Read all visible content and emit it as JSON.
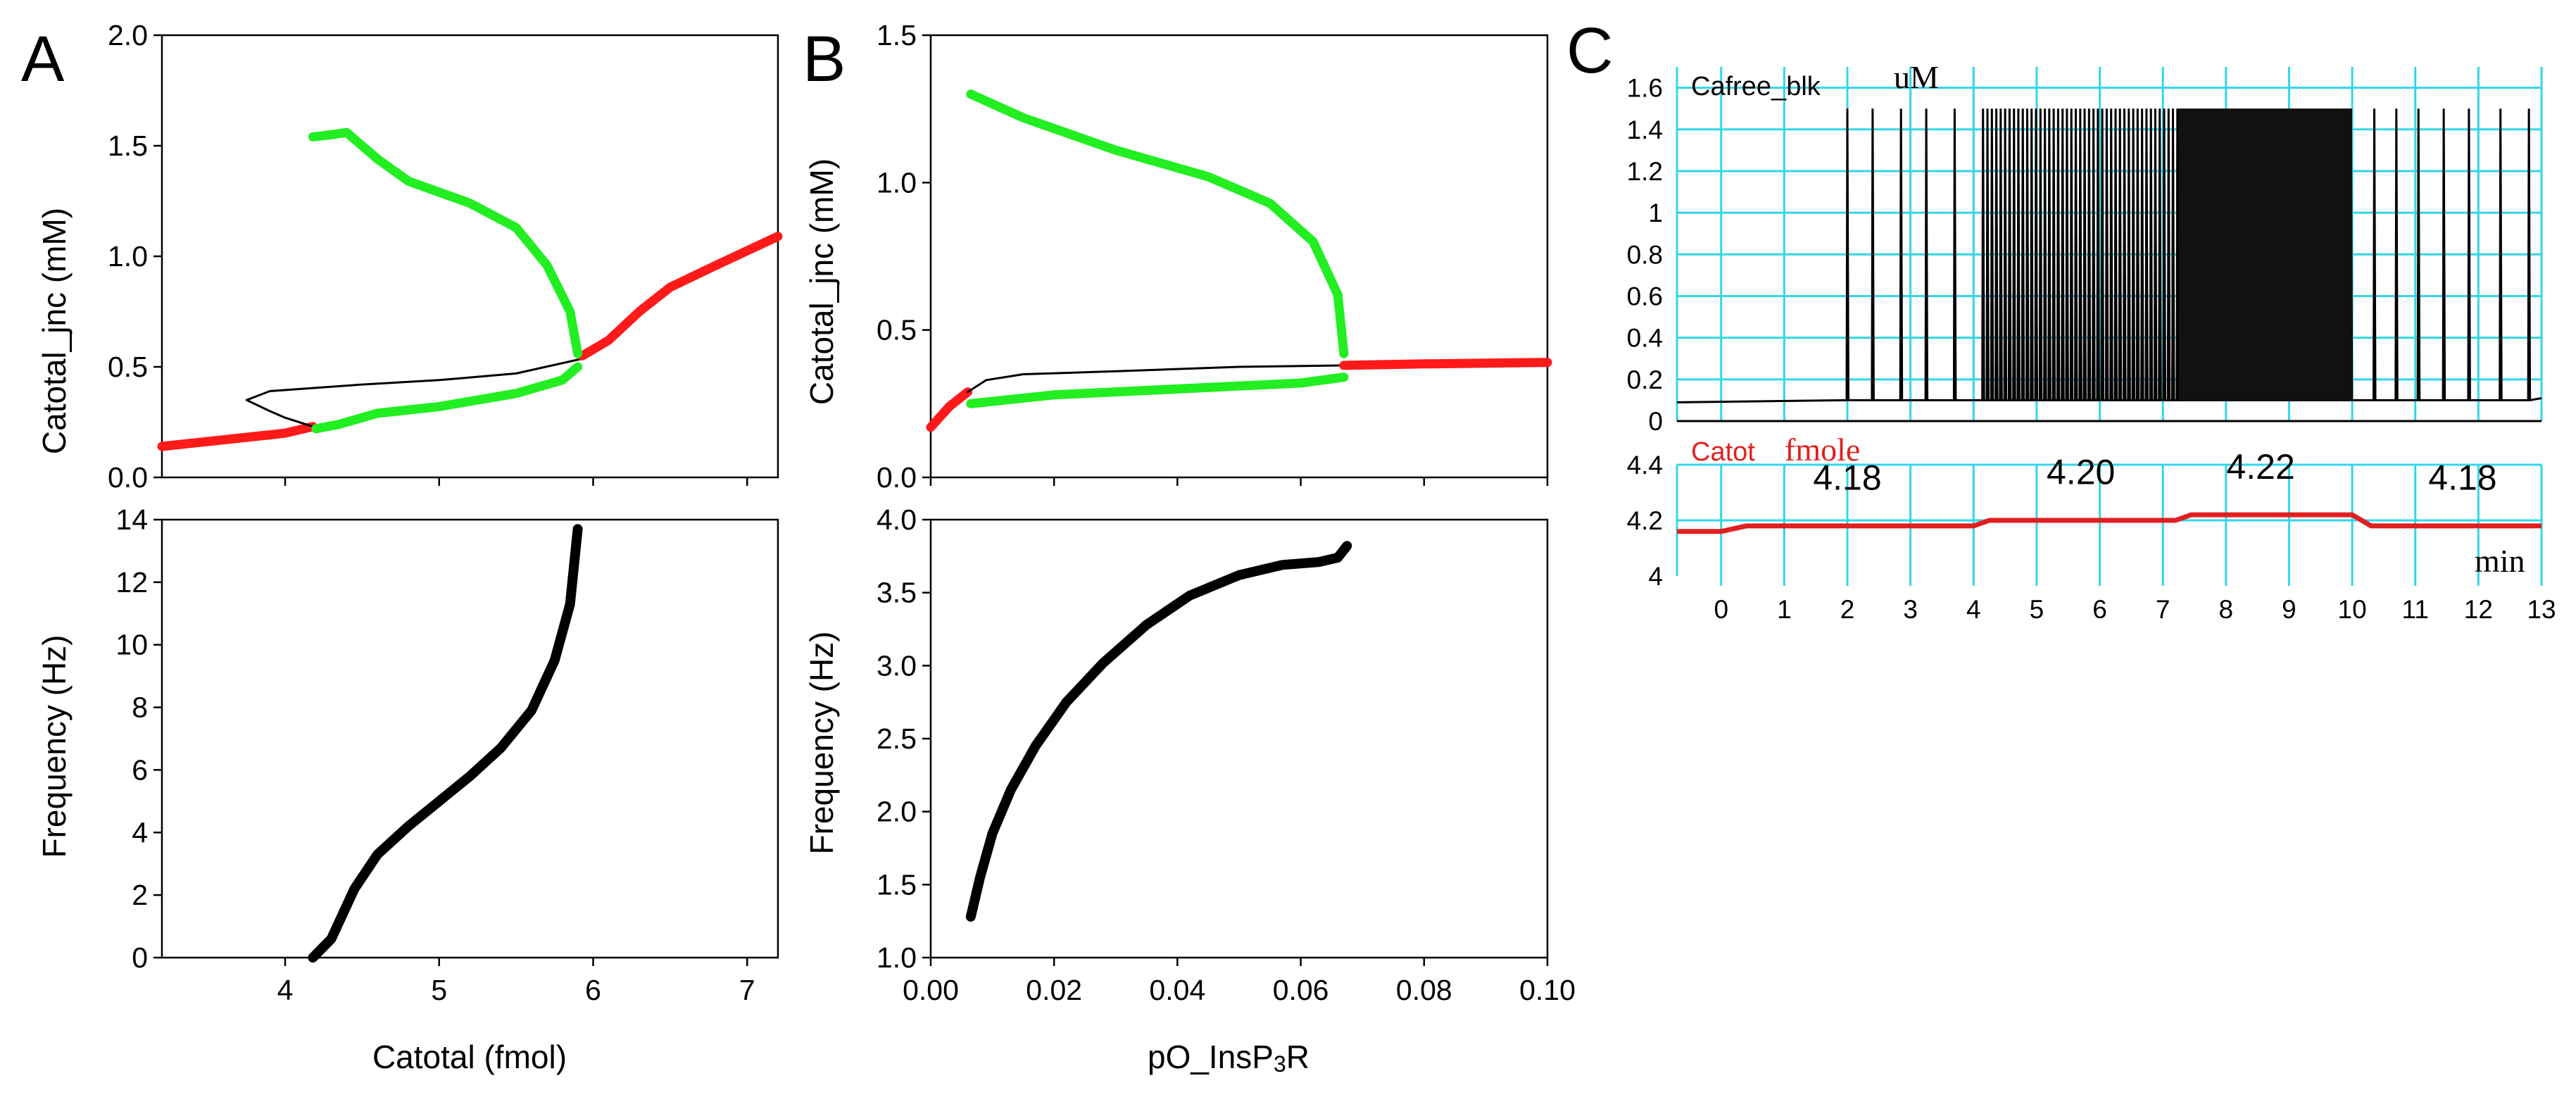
{
  "panel_labels": {
    "A": "A",
    "B": "B",
    "C": "C"
  },
  "colors": {
    "stable": "#ff1a1a",
    "limit_cycle": "#22ee22",
    "unstable": "#000000",
    "frequency": "#000000",
    "grid_c": "#33d6e8",
    "catot_line": "#e02020"
  },
  "chart_data": [
    {
      "id": "A-top",
      "type": "line",
      "xlabel": "",
      "ylabel": "Catotal_jnc (mM)",
      "xlim": [
        3.2,
        7.2
      ],
      "ylim": [
        0.0,
        2.0
      ],
      "x_ticks": [],
      "y_ticks": [
        0.0,
        0.5,
        1.0,
        1.5,
        2.0
      ],
      "y_tick_labels": [
        "0.0",
        "0.5",
        "1.0",
        "1.5",
        "2.0"
      ],
      "series": [
        {
          "role": "stable",
          "points": [
            [
              3.2,
              0.14
            ],
            [
              3.6,
              0.17
            ],
            [
              4.0,
              0.2
            ],
            [
              4.18,
              0.23
            ]
          ]
        },
        {
          "role": "unstable",
          "points": [
            [
              4.18,
              0.23
            ],
            [
              4.0,
              0.27
            ],
            [
              3.9,
              0.3
            ],
            [
              3.75,
              0.35
            ],
            [
              3.9,
              0.39
            ],
            [
              4.5,
              0.42
            ],
            [
              5.0,
              0.44
            ],
            [
              5.5,
              0.47
            ],
            [
              5.95,
              0.54
            ]
          ]
        },
        {
          "role": "stable",
          "points": [
            [
              5.93,
              0.55
            ],
            [
              6.1,
              0.62
            ],
            [
              6.3,
              0.75
            ],
            [
              6.5,
              0.86
            ],
            [
              6.8,
              0.96
            ],
            [
              7.2,
              1.09
            ]
          ]
        },
        {
          "role": "limit_cycle-max",
          "points": [
            [
              4.18,
              1.54
            ],
            [
              4.3,
              1.55
            ],
            [
              4.4,
              1.56
            ],
            [
              4.6,
              1.44
            ],
            [
              4.8,
              1.34
            ],
            [
              5.2,
              1.24
            ],
            [
              5.5,
              1.13
            ],
            [
              5.7,
              0.96
            ],
            [
              5.85,
              0.75
            ],
            [
              5.9,
              0.56
            ]
          ]
        },
        {
          "role": "limit_cycle-min",
          "points": [
            [
              4.2,
              0.22
            ],
            [
              4.35,
              0.24
            ],
            [
              4.6,
              0.29
            ],
            [
              5.0,
              0.32
            ],
            [
              5.5,
              0.38
            ],
            [
              5.8,
              0.44
            ],
            [
              5.9,
              0.5
            ]
          ]
        }
      ]
    },
    {
      "id": "A-bottom",
      "type": "line",
      "xlabel": "Catotal (fmol)",
      "ylabel": "Frequency (Hz)",
      "xlim": [
        3.2,
        7.2
      ],
      "ylim": [
        0,
        14
      ],
      "x_ticks": [
        4,
        5,
        6,
        7
      ],
      "x_tick_labels": [
        "4",
        "5",
        "6",
        "7"
      ],
      "y_ticks": [
        0,
        2,
        4,
        6,
        8,
        10,
        12,
        14
      ],
      "y_tick_labels": [
        "0",
        "2",
        "4",
        "6",
        "8",
        "10",
        "12",
        "14"
      ],
      "series": [
        {
          "role": "frequency",
          "points": [
            [
              4.18,
              0
            ],
            [
              4.3,
              0.6
            ],
            [
              4.45,
              2.2
            ],
            [
              4.6,
              3.3
            ],
            [
              4.8,
              4.2
            ],
            [
              5.0,
              5.0
            ],
            [
              5.2,
              5.8
            ],
            [
              5.4,
              6.7
            ],
            [
              5.6,
              7.9
            ],
            [
              5.75,
              9.5
            ],
            [
              5.85,
              11.3
            ],
            [
              5.9,
              13.7
            ]
          ]
        }
      ]
    },
    {
      "id": "B-top",
      "type": "line",
      "xlabel": "",
      "ylabel": "Catotal_jnc (mM)",
      "xlim": [
        0.0,
        0.1
      ],
      "ylim": [
        0.0,
        1.5
      ],
      "x_ticks": [],
      "y_ticks": [
        0.0,
        0.5,
        1.0,
        1.5
      ],
      "y_tick_labels": [
        "0.0",
        "0.5",
        "1.0",
        "1.5"
      ],
      "series": [
        {
          "role": "stable",
          "points": [
            [
              0.0,
              0.17
            ],
            [
              0.003,
              0.24
            ],
            [
              0.006,
              0.29
            ]
          ]
        },
        {
          "role": "unstable",
          "points": [
            [
              0.006,
              0.29
            ],
            [
              0.009,
              0.33
            ],
            [
              0.015,
              0.35
            ],
            [
              0.03,
              0.36
            ],
            [
              0.05,
              0.375
            ],
            [
              0.067,
              0.38
            ]
          ]
        },
        {
          "role": "stable",
          "points": [
            [
              0.067,
              0.38
            ],
            [
              0.08,
              0.385
            ],
            [
              0.1,
              0.39
            ]
          ]
        },
        {
          "role": "limit_cycle-max",
          "points": [
            [
              0.0065,
              1.3
            ],
            [
              0.015,
              1.22
            ],
            [
              0.03,
              1.11
            ],
            [
              0.045,
              1.02
            ],
            [
              0.055,
              0.93
            ],
            [
              0.062,
              0.8
            ],
            [
              0.066,
              0.62
            ],
            [
              0.067,
              0.42
            ]
          ]
        },
        {
          "role": "limit_cycle-min",
          "points": [
            [
              0.0065,
              0.25
            ],
            [
              0.02,
              0.28
            ],
            [
              0.04,
              0.3
            ],
            [
              0.06,
              0.32
            ],
            [
              0.067,
              0.34
            ]
          ]
        }
      ]
    },
    {
      "id": "B-bottom",
      "type": "line",
      "xlabel": "pO_InsP3R",
      "ylabel": "Frequency (Hz)",
      "xlim": [
        0.0,
        0.1
      ],
      "ylim": [
        1.0,
        4.0
      ],
      "x_ticks": [
        0.0,
        0.02,
        0.04,
        0.06,
        0.08,
        0.1
      ],
      "x_tick_labels": [
        "0.00",
        "0.02",
        "0.04",
        "0.06",
        "0.08",
        "0.10"
      ],
      "y_ticks": [
        1.0,
        1.5,
        2.0,
        2.5,
        3.0,
        3.5,
        4.0
      ],
      "y_tick_labels": [
        "1.0",
        "1.5",
        "2.0",
        "2.5",
        "3.0",
        "3.5",
        "4.0"
      ],
      "series": [
        {
          "role": "frequency",
          "points": [
            [
              0.0065,
              1.28
            ],
            [
              0.008,
              1.55
            ],
            [
              0.01,
              1.85
            ],
            [
              0.013,
              2.15
            ],
            [
              0.017,
              2.45
            ],
            [
              0.022,
              2.75
            ],
            [
              0.028,
              3.02
            ],
            [
              0.035,
              3.28
            ],
            [
              0.042,
              3.48
            ],
            [
              0.05,
              3.62
            ],
            [
              0.057,
              3.69
            ],
            [
              0.063,
              3.71
            ],
            [
              0.066,
              3.74
            ],
            [
              0.0675,
              3.82
            ]
          ]
        }
      ]
    },
    {
      "id": "C-top",
      "type": "line",
      "series_name": "Cafree_blk",
      "unit": "uM",
      "xlim": [
        -0.7,
        13.0
      ],
      "ylim": [
        0.0,
        1.7
      ],
      "y_ticks": [
        0,
        0.2,
        0.4,
        0.6,
        0.8,
        1,
        1.2,
        1.4,
        1.6
      ],
      "y_tick_labels": [
        "0",
        "0.2",
        "0.4",
        "0.6",
        "0.8",
        "1",
        "1.2",
        "1.4",
        "1.6"
      ],
      "baseline": 0.1,
      "spike_peak": 1.5,
      "isolated_spike_times": [
        2.0,
        2.4,
        2.85,
        3.25,
        3.7
      ],
      "dense_intervals": [
        [
          4.15,
          7.25
        ],
        [
          7.25,
          10.0
        ]
      ],
      "late_spike_times": [
        10.35,
        10.7,
        11.05,
        11.45,
        11.85,
        12.35,
        12.8
      ],
      "dense_spike_spacing": 0.07
    },
    {
      "id": "C-bottom",
      "type": "line",
      "series_name": "Catot",
      "unit": "fmole",
      "xlabel": "min",
      "xlim": [
        -0.7,
        13.0
      ],
      "ylim": [
        4.0,
        4.4
      ],
      "x_ticks": [
        0,
        1,
        2,
        3,
        4,
        5,
        6,
        7,
        8,
        9,
        10,
        11,
        12,
        13
      ],
      "x_tick_labels": [
        "0",
        "1",
        "2",
        "3",
        "4",
        "5",
        "6",
        "7",
        "8",
        "9",
        "10",
        "11",
        "12",
        "13"
      ],
      "y_ticks": [
        4,
        4.2,
        4.4
      ],
      "y_tick_labels": [
        "4",
        "4.2",
        "4.4"
      ],
      "points": [
        [
          -0.7,
          4.16
        ],
        [
          0.0,
          4.16
        ],
        [
          0.4,
          4.18
        ],
        [
          4.0,
          4.18
        ],
        [
          4.25,
          4.2
        ],
        [
          7.2,
          4.2
        ],
        [
          7.45,
          4.22
        ],
        [
          10.0,
          4.22
        ],
        [
          10.3,
          4.18
        ],
        [
          13.0,
          4.18
        ]
      ],
      "annotations": [
        {
          "x": 2.0,
          "y": 4.31,
          "text": "4.18"
        },
        {
          "x": 5.7,
          "y": 4.33,
          "text": "4.20"
        },
        {
          "x": 8.55,
          "y": 4.35,
          "text": "4.22"
        },
        {
          "x": 11.75,
          "y": 4.31,
          "text": "4.18"
        }
      ]
    }
  ]
}
